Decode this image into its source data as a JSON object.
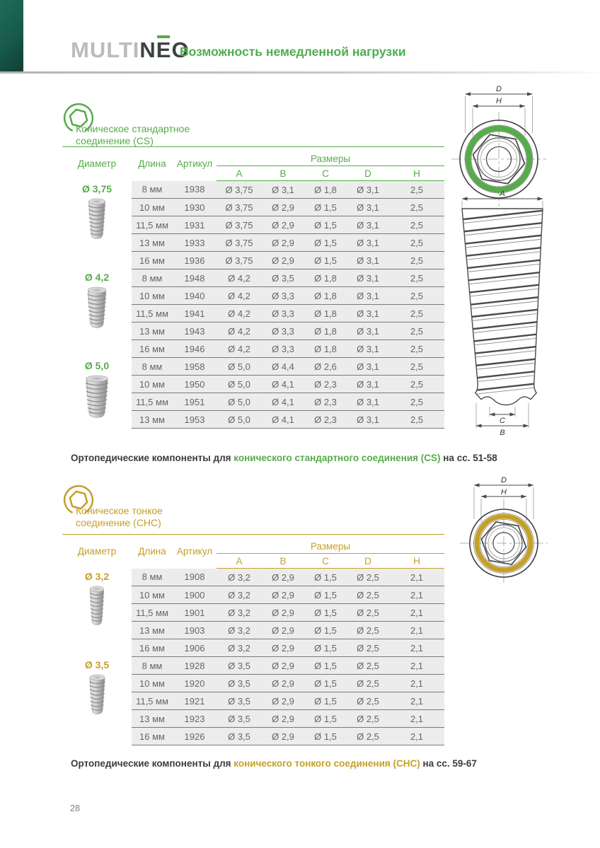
{
  "header": {
    "logo": {
      "multi": "MULTI",
      "n": "N",
      "e": "E",
      "o": "O"
    },
    "tagline": "Возможность немедленной нагрузки"
  },
  "colors": {
    "green": "#56ab4a",
    "gold": "#c5a028",
    "corner": "#17594a"
  },
  "sections": [
    {
      "id": "cs",
      "title_line1": "Коническое стандартное",
      "title_line2": "соединение (CS)",
      "table": {
        "col_diameter": "Диаметр",
        "col_length": "Длина",
        "col_article": "Артикул",
        "col_sizes": "Размеры",
        "size_cols": [
          "A",
          "B",
          "C",
          "D",
          "H"
        ],
        "groups": [
          {
            "diameter": "Ø 3,75",
            "rows": [
              {
                "length": "8 мм",
                "article": "1938",
                "a": "Ø 3,75",
                "b": "Ø 3,1",
                "c": "Ø 1,8",
                "d": "Ø 3,1",
                "h": "2,5"
              },
              {
                "length": "10 мм",
                "article": "1930",
                "a": "Ø 3,75",
                "b": "Ø 2,9",
                "c": "Ø 1,5",
                "d": "Ø 3,1",
                "h": "2,5"
              },
              {
                "length": "11,5 мм",
                "article": "1931",
                "a": "Ø 3,75",
                "b": "Ø 2,9",
                "c": "Ø 1,5",
                "d": "Ø 3,1",
                "h": "2,5"
              },
              {
                "length": "13 мм",
                "article": "1933",
                "a": "Ø 3,75",
                "b": "Ø 2,9",
                "c": "Ø 1,5",
                "d": "Ø 3,1",
                "h": "2,5"
              },
              {
                "length": "16 мм",
                "article": "1936",
                "a": "Ø 3,75",
                "b": "Ø 2,9",
                "c": "Ø 1,5",
                "d": "Ø 3,1",
                "h": "2,5"
              }
            ]
          },
          {
            "diameter": "Ø 4,2",
            "rows": [
              {
                "length": "8 мм",
                "article": "1948",
                "a": "Ø 4,2",
                "b": "Ø 3,5",
                "c": "Ø 1,8",
                "d": "Ø 3,1",
                "h": "2,5"
              },
              {
                "length": "10 мм",
                "article": "1940",
                "a": "Ø 4,2",
                "b": "Ø 3,3",
                "c": "Ø 1,8",
                "d": "Ø 3,1",
                "h": "2,5"
              },
              {
                "length": "11,5 мм",
                "article": "1941",
                "a": "Ø 4,2",
                "b": "Ø 3,3",
                "c": "Ø 1,8",
                "d": "Ø 3,1",
                "h": "2,5"
              },
              {
                "length": "13 мм",
                "article": "1943",
                "a": "Ø 4,2",
                "b": "Ø 3,3",
                "c": "Ø 1,8",
                "d": "Ø 3,1",
                "h": "2,5"
              },
              {
                "length": "16 мм",
                "article": "1946",
                "a": "Ø 4,2",
                "b": "Ø 3,3",
                "c": "Ø 1,8",
                "d": "Ø 3,1",
                "h": "2,5"
              }
            ]
          },
          {
            "diameter": "Ø 5,0",
            "rows": [
              {
                "length": "8 мм",
                "article": "1958",
                "a": "Ø 5,0",
                "b": "Ø 4,4",
                "c": "Ø 2,6",
                "d": "Ø 3,1",
                "h": "2,5"
              },
              {
                "length": "10 мм",
                "article": "1950",
                "a": "Ø 5,0",
                "b": "Ø 4,1",
                "c": "Ø 2,3",
                "d": "Ø 3,1",
                "h": "2,5"
              },
              {
                "length": "11,5 мм",
                "article": "1951",
                "a": "Ø 5,0",
                "b": "Ø 4,1",
                "c": "Ø 2,3",
                "d": "Ø 3,1",
                "h": "2,5"
              },
              {
                "length": "13 мм",
                "article": "1953",
                "a": "Ø 5,0",
                "b": "Ø 4,1",
                "c": "Ø 2,3",
                "d": "Ø 3,1",
                "h": "2,5"
              }
            ]
          }
        ]
      },
      "footnote": {
        "prefix": "Ортопедические компоненты для ",
        "highlight": "конического стандартного соединения (CS)",
        "suffix": " на сс. 51-58"
      }
    },
    {
      "id": "chc",
      "title_line1": "Коническое тонкое",
      "title_line2": "соединение (СНС)",
      "table": {
        "col_diameter": "Диаметр",
        "col_length": "Длина",
        "col_article": "Артикул",
        "col_sizes": "Размеры",
        "size_cols": [
          "A",
          "B",
          "C",
          "D",
          "H"
        ],
        "groups": [
          {
            "diameter": "Ø 3,2",
            "rows": [
              {
                "length": "8 мм",
                "article": "1908",
                "a": "Ø 3,2",
                "b": "Ø 2,9",
                "c": "Ø 1,5",
                "d": "Ø 2,5",
                "h": "2,1"
              },
              {
                "length": "10 мм",
                "article": "1900",
                "a": "Ø 3,2",
                "b": "Ø 2,9",
                "c": "Ø 1,5",
                "d": "Ø 2,5",
                "h": "2,1"
              },
              {
                "length": "11,5 мм",
                "article": "1901",
                "a": "Ø 3,2",
                "b": "Ø 2,9",
                "c": "Ø 1,5",
                "d": "Ø 2,5",
                "h": "2,1"
              },
              {
                "length": "13 мм",
                "article": "1903",
                "a": "Ø 3,2",
                "b": "Ø 2,9",
                "c": "Ø 1,5",
                "d": "Ø 2,5",
                "h": "2,1"
              },
              {
                "length": "16 мм",
                "article": "1906",
                "a": "Ø 3,2",
                "b": "Ø 2,9",
                "c": "Ø 1,5",
                "d": "Ø 2,5",
                "h": "2,1"
              }
            ]
          },
          {
            "diameter": "Ø 3,5",
            "rows": [
              {
                "length": "8 мм",
                "article": "1928",
                "a": "Ø 3,5",
                "b": "Ø 2,9",
                "c": "Ø 1,5",
                "d": "Ø 2,5",
                "h": "2,1"
              },
              {
                "length": "10 мм",
                "article": "1920",
                "a": "Ø 3,5",
                "b": "Ø 2,9",
                "c": "Ø 1,5",
                "d": "Ø 2,5",
                "h": "2,1"
              },
              {
                "length": "11,5 мм",
                "article": "1921",
                "a": "Ø 3,5",
                "b": "Ø 2,9",
                "c": "Ø 1,5",
                "d": "Ø 2,5",
                "h": "2,1"
              },
              {
                "length": "13 мм",
                "article": "1923",
                "a": "Ø 3,5",
                "b": "Ø 2,9",
                "c": "Ø 1,5",
                "d": "Ø 2,5",
                "h": "2,1"
              },
              {
                "length": "16 мм",
                "article": "1926",
                "a": "Ø 3,5",
                "b": "Ø 2,9",
                "c": "Ø 1,5",
                "d": "Ø 2,5",
                "h": "2,1"
              }
            ]
          }
        ]
      },
      "footnote": {
        "prefix": "Ортопедические компоненты для ",
        "highlight": "конического тонкого соединения (СНС)",
        "suffix": " на сс. 59-67"
      }
    }
  ],
  "diagrams": {
    "cs_top": {
      "d": "D",
      "h": "H"
    },
    "side": {
      "a": "A",
      "c": "C",
      "b": "B"
    },
    "chc_top": {
      "d": "D",
      "h": "H"
    }
  },
  "page_number": "28"
}
